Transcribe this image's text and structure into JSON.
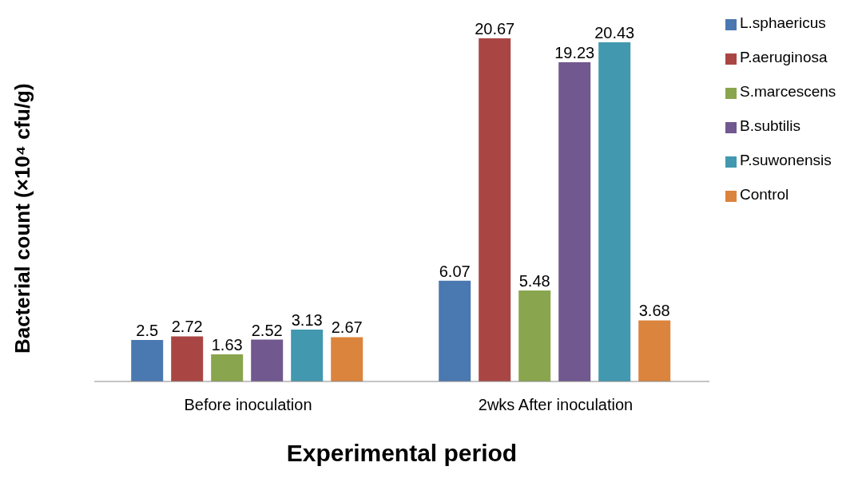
{
  "chart_data": {
    "type": "bar",
    "xlabel": "Experimental period",
    "ylabel": "Bacterial count (×10⁴ cfu/g)",
    "categories": [
      "Before inoculation",
      "2wks After inoculation"
    ],
    "series": [
      {
        "name": "L.sphaericus",
        "color": "#4a78b0",
        "values": [
          2.5,
          6.07
        ]
      },
      {
        "name": "P.aeruginosa",
        "color": "#a94644",
        "values": [
          2.72,
          20.67
        ]
      },
      {
        "name": "S.marcescens",
        "color": "#89a54e",
        "values": [
          1.63,
          5.48
        ]
      },
      {
        "name": "B.subtilis",
        "color": "#71588f",
        "values": [
          2.52,
          19.23
        ]
      },
      {
        "name": "P.suwonensis",
        "color": "#4198af",
        "values": [
          3.13,
          20.43
        ]
      },
      {
        "name": "Control",
        "color": "#db843d",
        "values": [
          2.67,
          3.68
        ]
      }
    ],
    "data_labels": true,
    "legend": "right",
    "grid": false
  }
}
